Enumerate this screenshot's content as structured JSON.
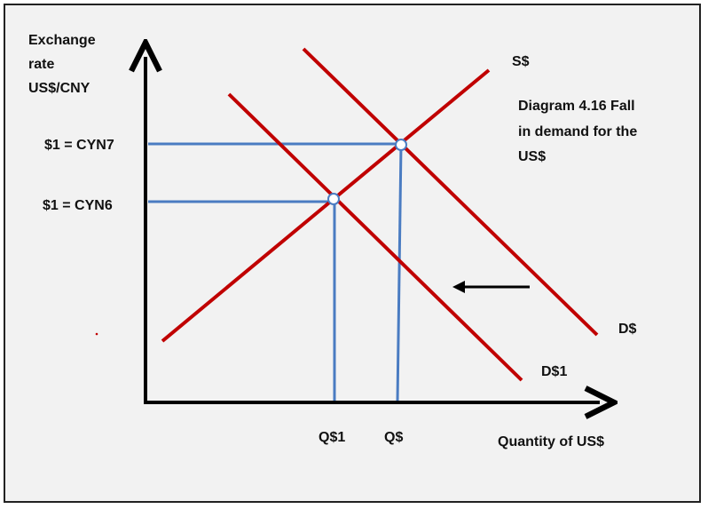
{
  "figure": {
    "y_axis_title": [
      "Exchange",
      "rate",
      "US$/CNY"
    ],
    "x_axis_title": "Quantity of US$",
    "caption": [
      "Diagram 4.16 Fall",
      "in demand for the",
      "US$"
    ],
    "price_labels": {
      "high": "$1 = CYN7",
      "low": "$1 = CYN6"
    },
    "quantity_labels": {
      "new": "Q$1",
      "original": "Q$"
    },
    "curve_labels": {
      "supply": "S$",
      "demand_original": "D$",
      "demand_new": "D$1"
    }
  },
  "colors": {
    "background": "#f2f2f2",
    "curves": "#c00000",
    "guides": "#4a7cc2",
    "axes": "#000000",
    "arrow": "#000000"
  }
}
